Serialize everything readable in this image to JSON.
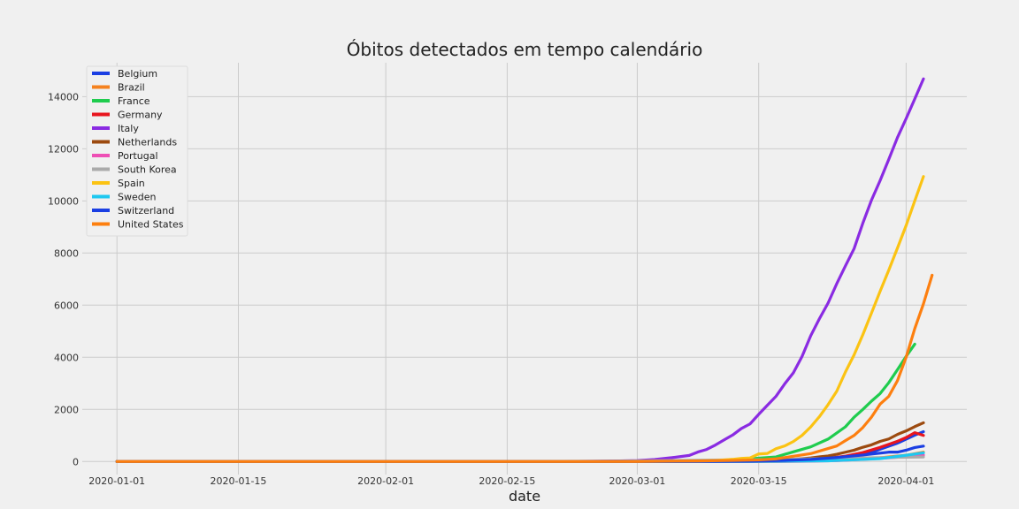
{
  "chart_data": {
    "type": "line",
    "title": "Óbitos detectados em tempo calendário",
    "xlabel": "date",
    "ylabel": "",
    "xlim": [
      "2019-12-28",
      "2020-04-08"
    ],
    "ylim": [
      -500,
      15300
    ],
    "x_ticks": [
      "2020-01-01",
      "2020-01-15",
      "2020-02-01",
      "2020-02-15",
      "2020-03-01",
      "2020-03-15",
      "2020-04-01"
    ],
    "y_ticks": [
      0,
      2000,
      4000,
      6000,
      8000,
      10000,
      12000,
      14000
    ],
    "grid": true,
    "legend_position": "top-left",
    "series": [
      {
        "name": "Belgium",
        "color": "#1b3fe3",
        "points": [
          [
            "2020-01-01",
            0
          ],
          [
            "2020-03-10",
            0
          ],
          [
            "2020-03-14",
            4
          ],
          [
            "2020-03-18",
            14
          ],
          [
            "2020-03-22",
            75
          ],
          [
            "2020-03-25",
            178
          ],
          [
            "2020-03-28",
            353
          ],
          [
            "2020-03-31",
            705
          ],
          [
            "2020-04-02",
            1011
          ],
          [
            "2020-04-03",
            1143
          ]
        ]
      },
      {
        "name": "Brazil",
        "color": "#f5821f",
        "points": [
          [
            "2020-01-01",
            0
          ],
          [
            "2020-03-16",
            0
          ],
          [
            "2020-03-20",
            11
          ],
          [
            "2020-03-24",
            46
          ],
          [
            "2020-03-28",
            111
          ],
          [
            "2020-04-01",
            241
          ],
          [
            "2020-04-03",
            359
          ]
        ]
      },
      {
        "name": "France",
        "color": "#1fcc4e",
        "points": [
          [
            "2020-01-01",
            0
          ],
          [
            "2020-02-14",
            1
          ],
          [
            "2020-03-01",
            2
          ],
          [
            "2020-03-06",
            9
          ],
          [
            "2020-03-09",
            25
          ],
          [
            "2020-03-11",
            48
          ],
          [
            "2020-03-13",
            79
          ],
          [
            "2020-03-15",
            127
          ],
          [
            "2020-03-17",
            175
          ],
          [
            "2020-03-19",
            372
          ],
          [
            "2020-03-21",
            562
          ],
          [
            "2020-03-23",
            860
          ],
          [
            "2020-03-25",
            1331
          ],
          [
            "2020-03-26",
            1696
          ],
          [
            "2020-03-27",
            1995
          ],
          [
            "2020-03-28",
            2314
          ],
          [
            "2020-03-29",
            2606
          ],
          [
            "2020-03-30",
            3024
          ],
          [
            "2020-03-31",
            3523
          ],
          [
            "2020-04-01",
            4032
          ],
          [
            "2020-04-02",
            4503
          ]
        ]
      },
      {
        "name": "Germany",
        "color": "#e8151e",
        "points": [
          [
            "2020-01-01",
            0
          ],
          [
            "2020-03-08",
            0
          ],
          [
            "2020-03-12",
            3
          ],
          [
            "2020-03-16",
            17
          ],
          [
            "2020-03-19",
            44
          ],
          [
            "2020-03-21",
            84
          ],
          [
            "2020-03-23",
            123
          ],
          [
            "2020-03-25",
            206
          ],
          [
            "2020-03-27",
            342
          ],
          [
            "2020-03-29",
            541
          ],
          [
            "2020-03-31",
            775
          ],
          [
            "2020-04-01",
            920
          ],
          [
            "2020-04-02",
            1107
          ],
          [
            "2020-04-03",
            1000
          ]
        ]
      },
      {
        "name": "Italy",
        "color": "#8a2be2",
        "points": [
          [
            "2020-01-01",
            0
          ],
          [
            "2020-02-21",
            1
          ],
          [
            "2020-02-25",
            10
          ],
          [
            "2020-02-28",
            21
          ],
          [
            "2020-03-01",
            34
          ],
          [
            "2020-03-03",
            79
          ],
          [
            "2020-03-05",
            148
          ],
          [
            "2020-03-07",
            233
          ],
          [
            "2020-03-08",
            366
          ],
          [
            "2020-03-09",
            463
          ],
          [
            "2020-03-10",
            631
          ],
          [
            "2020-03-11",
            827
          ],
          [
            "2020-03-12",
            1016
          ],
          [
            "2020-03-13",
            1266
          ],
          [
            "2020-03-14",
            1441
          ],
          [
            "2020-03-15",
            1809
          ],
          [
            "2020-03-16",
            2158
          ],
          [
            "2020-03-17",
            2503
          ],
          [
            "2020-03-18",
            2978
          ],
          [
            "2020-03-19",
            3405
          ],
          [
            "2020-03-20",
            4032
          ],
          [
            "2020-03-21",
            4825
          ],
          [
            "2020-03-22",
            5476
          ],
          [
            "2020-03-23",
            6077
          ],
          [
            "2020-03-24",
            6820
          ],
          [
            "2020-03-25",
            7503
          ],
          [
            "2020-03-26",
            8165
          ],
          [
            "2020-03-27",
            9134
          ],
          [
            "2020-03-28",
            10023
          ],
          [
            "2020-03-29",
            10779
          ],
          [
            "2020-03-30",
            11591
          ],
          [
            "2020-03-31",
            12428
          ],
          [
            "2020-04-01",
            13155
          ],
          [
            "2020-04-02",
            13915
          ],
          [
            "2020-04-03",
            14681
          ]
        ]
      },
      {
        "name": "Netherlands",
        "color": "#9c4a0f",
        "points": [
          [
            "2020-01-01",
            0
          ],
          [
            "2020-03-06",
            0
          ],
          [
            "2020-03-10",
            4
          ],
          [
            "2020-03-13",
            10
          ],
          [
            "2020-03-16",
            24
          ],
          [
            "2020-03-18",
            58
          ],
          [
            "2020-03-20",
            106
          ],
          [
            "2020-03-21",
            136
          ],
          [
            "2020-03-22",
            179
          ],
          [
            "2020-03-23",
            213
          ],
          [
            "2020-03-24",
            276
          ],
          [
            "2020-03-25",
            356
          ],
          [
            "2020-03-26",
            434
          ],
          [
            "2020-03-27",
            546
          ],
          [
            "2020-03-28",
            639
          ],
          [
            "2020-03-29",
            771
          ],
          [
            "2020-03-30",
            864
          ],
          [
            "2020-03-31",
            1039
          ],
          [
            "2020-04-01",
            1173
          ],
          [
            "2020-04-02",
            1339
          ],
          [
            "2020-04-03",
            1487
          ]
        ]
      },
      {
        "name": "Portugal",
        "color": "#ee4fb5",
        "points": [
          [
            "2020-01-01",
            0
          ],
          [
            "2020-03-16",
            0
          ],
          [
            "2020-03-20",
            6
          ],
          [
            "2020-03-24",
            33
          ],
          [
            "2020-03-28",
            100
          ],
          [
            "2020-04-01",
            187
          ],
          [
            "2020-04-03",
            246
          ]
        ]
      },
      {
        "name": "South Korea",
        "color": "#aaaaaa",
        "points": [
          [
            "2020-01-01",
            0
          ],
          [
            "2020-02-20",
            1
          ],
          [
            "2020-02-25",
            10
          ],
          [
            "2020-03-01",
            22
          ],
          [
            "2020-03-06",
            44
          ],
          [
            "2020-03-11",
            60
          ],
          [
            "2020-03-16",
            75
          ],
          [
            "2020-03-21",
            102
          ],
          [
            "2020-03-26",
            131
          ],
          [
            "2020-03-31",
            162
          ],
          [
            "2020-04-03",
            174
          ]
        ]
      },
      {
        "name": "Spain",
        "color": "#fbc313",
        "points": [
          [
            "2020-01-01",
            0
          ],
          [
            "2020-03-03",
            0
          ],
          [
            "2020-03-06",
            5
          ],
          [
            "2020-03-08",
            17
          ],
          [
            "2020-03-10",
            36
          ],
          [
            "2020-03-12",
            84
          ],
          [
            "2020-03-13",
            120
          ],
          [
            "2020-03-14",
            136
          ],
          [
            "2020-03-15",
            289
          ],
          [
            "2020-03-16",
            309
          ],
          [
            "2020-03-17",
            491
          ],
          [
            "2020-03-18",
            598
          ],
          [
            "2020-03-19",
            767
          ],
          [
            "2020-03-20",
            1002
          ],
          [
            "2020-03-21",
            1326
          ],
          [
            "2020-03-22",
            1720
          ],
          [
            "2020-03-23",
            2182
          ],
          [
            "2020-03-24",
            2696
          ],
          [
            "2020-03-25",
            3434
          ],
          [
            "2020-03-26",
            4089
          ],
          [
            "2020-03-27",
            4858
          ],
          [
            "2020-03-28",
            5690
          ],
          [
            "2020-03-29",
            6528
          ],
          [
            "2020-03-30",
            7340
          ],
          [
            "2020-03-31",
            8189
          ],
          [
            "2020-04-01",
            9053
          ],
          [
            "2020-04-02",
            10003
          ],
          [
            "2020-04-03",
            10935
          ]
        ]
      },
      {
        "name": "Sweden",
        "color": "#1ec8f0",
        "points": [
          [
            "2020-01-01",
            0
          ],
          [
            "2020-03-11",
            0
          ],
          [
            "2020-03-14",
            1
          ],
          [
            "2020-03-17",
            7
          ],
          [
            "2020-03-20",
            16
          ],
          [
            "2020-03-23",
            25
          ],
          [
            "2020-03-26",
            66
          ],
          [
            "2020-03-29",
            110
          ],
          [
            "2020-04-01",
            239
          ],
          [
            "2020-04-03",
            333
          ]
        ]
      },
      {
        "name": "Switzerland",
        "color": "#1b3fe3",
        "points": [
          [
            "2020-01-01",
            0
          ],
          [
            "2020-03-05",
            0
          ],
          [
            "2020-03-10",
            4
          ],
          [
            "2020-03-14",
            14
          ],
          [
            "2020-03-18",
            43
          ],
          [
            "2020-03-21",
            80
          ],
          [
            "2020-03-24",
            153
          ],
          [
            "2020-03-27",
            248
          ],
          [
            "2020-03-30",
            359
          ],
          [
            "2020-03-31",
            359
          ],
          [
            "2020-04-01",
            433
          ],
          [
            "2020-04-02",
            536
          ],
          [
            "2020-04-03",
            591
          ]
        ]
      },
      {
        "name": "United States",
        "color": "#fd7f0f",
        "points": [
          [
            "2020-01-01",
            0
          ],
          [
            "2020-02-28",
            0
          ],
          [
            "2020-03-01",
            1
          ],
          [
            "2020-03-04",
            11
          ],
          [
            "2020-03-08",
            21
          ],
          [
            "2020-03-12",
            41
          ],
          [
            "2020-03-15",
            62
          ],
          [
            "2020-03-17",
            102
          ],
          [
            "2020-03-19",
            200
          ],
          [
            "2020-03-21",
            302
          ],
          [
            "2020-03-23",
            497
          ],
          [
            "2020-03-24",
            595
          ],
          [
            "2020-03-25",
            800
          ],
          [
            "2020-03-26",
            1000
          ],
          [
            "2020-03-27",
            1300
          ],
          [
            "2020-03-28",
            1700
          ],
          [
            "2020-03-29",
            2200
          ],
          [
            "2020-03-30",
            2500
          ],
          [
            "2020-03-31",
            3100
          ],
          [
            "2020-04-01",
            4000
          ],
          [
            "2020-04-02",
            5100
          ],
          [
            "2020-04-03",
            6050
          ],
          [
            "2020-04-04",
            7150
          ]
        ]
      }
    ]
  }
}
